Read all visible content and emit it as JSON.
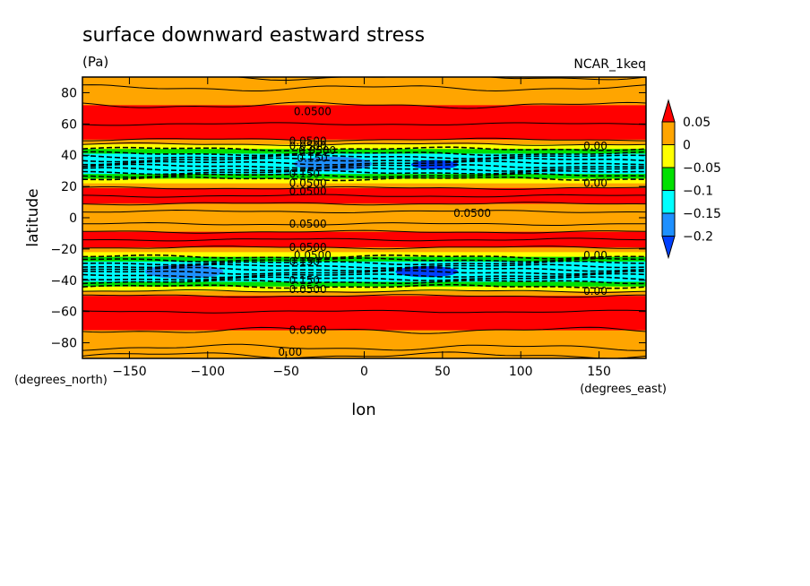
{
  "chart_data": {
    "type": "heatmap",
    "title": "surface downward eastward stress",
    "units": "(Pa)",
    "model_label": "NCAR_1keq",
    "xlabel": "lon",
    "ylabel": "latitude",
    "x_units": "(degrees_east)",
    "y_units": "(degrees_north)",
    "xlim": [
      -180,
      180
    ],
    "ylim": [
      -90,
      90
    ],
    "x_ticks": [
      -150,
      -100,
      -50,
      0,
      50,
      100,
      150
    ],
    "y_ticks": [
      80,
      60,
      40,
      20,
      0,
      -20,
      -40,
      -60,
      -80
    ],
    "colorbar": {
      "levels": [
        0.05,
        0,
        -0.05,
        -0.1,
        -0.15,
        -0.2
      ],
      "level_labels": [
        "0.05",
        "0",
        "−0.05",
        "−0.1",
        "−0.15",
        "−0.2"
      ],
      "colors": [
        "#ff0000",
        "#ffa500",
        "#ffff00",
        "#00e000",
        "#00ffff",
        "#1e90ff",
        "#0040ff"
      ]
    },
    "zonal_bands": [
      {
        "lat_from": 90,
        "lat_to": 83,
        "color": "#ffa500"
      },
      {
        "lat_from": 83,
        "lat_to": 72,
        "color": "#ffa500"
      },
      {
        "lat_from": 72,
        "lat_to": 50,
        "color": "#ff0000"
      },
      {
        "lat_from": 50,
        "lat_to": 47,
        "color": "#ffa500"
      },
      {
        "lat_from": 47,
        "lat_to": 44,
        "color": "#ffff00"
      },
      {
        "lat_from": 44,
        "lat_to": 41,
        "color": "#00e000"
      },
      {
        "lat_from": 41,
        "lat_to": 28,
        "color": "#00ffff"
      },
      {
        "lat_from": 28,
        "lat_to": 25,
        "color": "#00e000"
      },
      {
        "lat_from": 25,
        "lat_to": 22,
        "color": "#ffff00"
      },
      {
        "lat_from": 22,
        "lat_to": 19,
        "color": "#ffa500"
      },
      {
        "lat_from": 19,
        "lat_to": 9,
        "color": "#ff0000"
      },
      {
        "lat_from": 9,
        "lat_to": -9,
        "color": "#ffa500"
      },
      {
        "lat_from": -9,
        "lat_to": -19,
        "color": "#ff0000"
      },
      {
        "lat_from": -19,
        "lat_to": -22,
        "color": "#ffa500"
      },
      {
        "lat_from": -22,
        "lat_to": -25,
        "color": "#ffff00"
      },
      {
        "lat_from": -25,
        "lat_to": -28,
        "color": "#00e000"
      },
      {
        "lat_from": -28,
        "lat_to": -41,
        "color": "#00ffff"
      },
      {
        "lat_from": -41,
        "lat_to": -44,
        "color": "#00e000"
      },
      {
        "lat_from": -44,
        "lat_to": -47,
        "color": "#ffff00"
      },
      {
        "lat_from": -47,
        "lat_to": -50,
        "color": "#ffa500"
      },
      {
        "lat_from": -50,
        "lat_to": -72,
        "color": "#ff0000"
      },
      {
        "lat_from": -72,
        "lat_to": -90,
        "color": "#ffa500"
      }
    ],
    "minimum_patches": [
      {
        "lon_from": -45,
        "lon_to": 5,
        "lat_from": 39,
        "lat_to": 30,
        "color": "#1e90ff"
      },
      {
        "lon_from": 30,
        "lon_to": 60,
        "lat_from": 37,
        "lat_to": 31,
        "color": "#0040ff"
      },
      {
        "lon_from": -140,
        "lon_to": -90,
        "lat_from": -30,
        "lat_to": -39,
        "color": "#1e90ff"
      },
      {
        "lon_from": 20,
        "lon_to": 60,
        "lat_from": -31,
        "lat_to": -38,
        "color": "#0040ff"
      }
    ],
    "contour_labels": [
      {
        "text": "0.0500",
        "lon": -45,
        "lat": 68
      },
      {
        "text": "0.0500",
        "lon": -48,
        "lat": 49
      },
      {
        "text": "0.0500",
        "lon": -48,
        "lat": 46
      },
      {
        "text": "0.0500",
        "lon": -42,
        "lat": 43
      },
      {
        "text": "0.150",
        "lon": -43,
        "lat": 38
      },
      {
        "text": "0.150",
        "lon": -48,
        "lat": 28
      },
      {
        "text": "0.0500",
        "lon": -48,
        "lat": 22
      },
      {
        "text": "0.0500",
        "lon": -48,
        "lat": 17
      },
      {
        "text": "0.00",
        "lon": 140,
        "lat": 46
      },
      {
        "text": "0.00",
        "lon": 140,
        "lat": 22
      },
      {
        "text": "0.0500",
        "lon": 57,
        "lat": 3
      },
      {
        "text": "0.0500",
        "lon": -48,
        "lat": -4
      },
      {
        "text": "0.0500",
        "lon": -48,
        "lat": -19
      },
      {
        "text": "0.0500",
        "lon": -45,
        "lat": -24
      },
      {
        "text": "0.150",
        "lon": -48,
        "lat": -28
      },
      {
        "text": "0.150",
        "lon": -48,
        "lat": -40
      },
      {
        "text": "0.0500",
        "lon": -48,
        "lat": -46
      },
      {
        "text": "0.00",
        "lon": 140,
        "lat": -24
      },
      {
        "text": "0.00",
        "lon": 140,
        "lat": -47
      },
      {
        "text": "0.0500",
        "lon": -48,
        "lat": -72
      },
      {
        "text": "0.00",
        "lon": -55,
        "lat": -86
      }
    ],
    "solid_contour_lats": [
      90,
      83,
      72,
      60,
      50,
      47,
      19,
      14,
      9,
      4,
      -4,
      -9,
      -14,
      -19,
      -47,
      -50,
      -60,
      -72,
      -83,
      -88
    ],
    "dashed_contour_lats": [
      44,
      41,
      39,
      37,
      35,
      33,
      31,
      29,
      27,
      25,
      -25,
      -27,
      -29,
      -31,
      -33,
      -35,
      -37,
      -39,
      -41,
      -44
    ],
    "grid": false,
    "legend_placement": "right"
  }
}
